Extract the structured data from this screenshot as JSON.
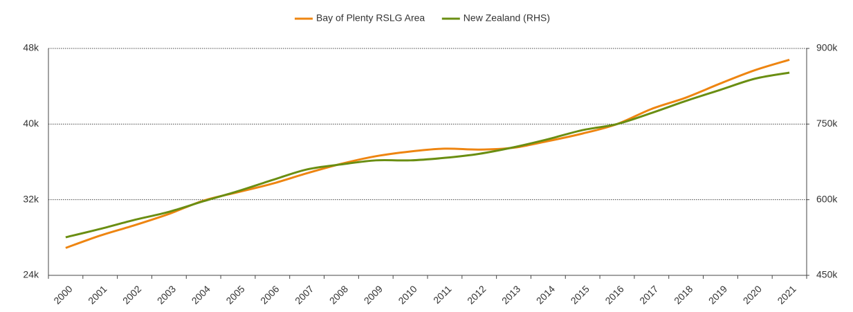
{
  "chart_data": {
    "type": "line",
    "categories": [
      "2000",
      "2001",
      "2002",
      "2003",
      "2004",
      "2005",
      "2006",
      "2007",
      "2008",
      "2009",
      "2010",
      "2011",
      "2012",
      "2013",
      "2014",
      "2015",
      "2016",
      "2017",
      "2018",
      "2019",
      "2020",
      "2021"
    ],
    "series": [
      {
        "name": "Bay of Plenty RSLG Area",
        "color": "#ee8511",
        "values": [
          26900,
          28200,
          29300,
          30500,
          31900,
          32800,
          33700,
          34800,
          35800,
          36600,
          37100,
          37400,
          37300,
          37500,
          38200,
          39000,
          40000,
          41600,
          42800,
          44300,
          45700,
          46800
        ]
      },
      {
        "name": "New Zealand (RHS)",
        "color": "#6a8e12",
        "axis": "y2",
        "values": [
          525500,
          542000,
          560000,
          576000,
          597000,
          617000,
          639000,
          660000,
          670000,
          678000,
          678000,
          683000,
          691000,
          704000,
          720000,
          738000,
          750000,
          772000,
          796000,
          818000,
          840000,
          852000
        ]
      }
    ],
    "ylim": [
      24000,
      48000
    ],
    "yticks": [
      {
        "value": 24000,
        "label": "24k"
      },
      {
        "value": 32000,
        "label": "32k"
      },
      {
        "value": 40000,
        "label": "40k"
      },
      {
        "value": 48000,
        "label": "48k"
      }
    ],
    "y2lim": [
      450000,
      900000
    ],
    "y2ticks": [
      {
        "value": 450000,
        "label": "450k"
      },
      {
        "value": 600000,
        "label": "600k"
      },
      {
        "value": 750000,
        "label": "750k"
      },
      {
        "value": 900000,
        "label": "900k"
      }
    ],
    "grid": true,
    "legend": "top"
  }
}
